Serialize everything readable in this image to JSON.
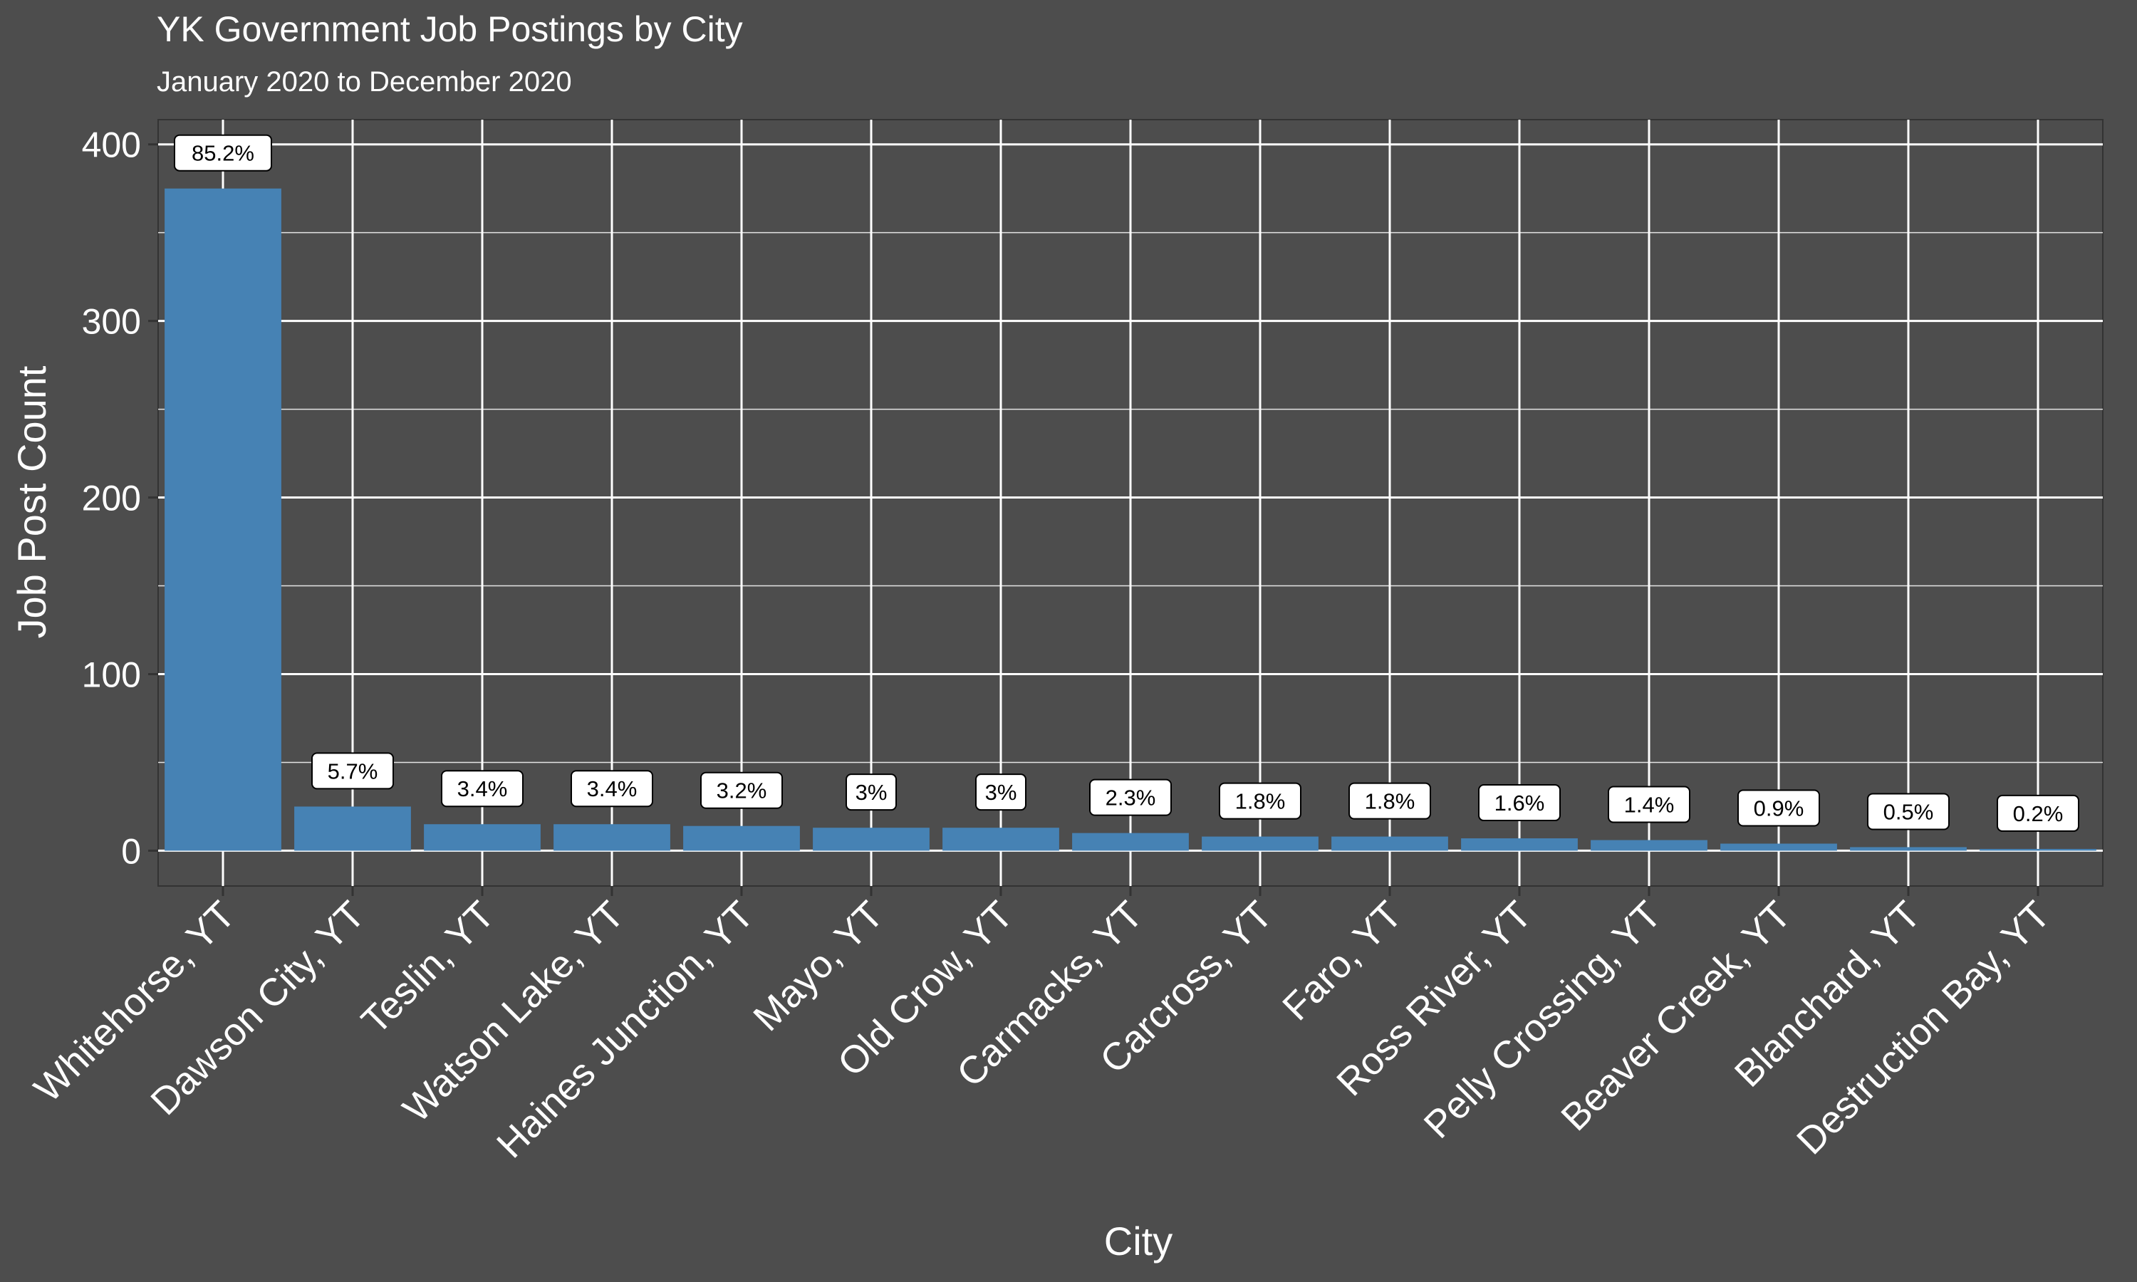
{
  "chart_data": {
    "type": "bar",
    "title": "YK Government Job Postings by City",
    "subtitle": "January 2020 to December 2020",
    "xlabel": "City",
    "ylabel": "Job Post Count",
    "categories": [
      "Whitehorse, YT",
      "Dawson City, YT",
      "Teslin, YT",
      "Watson Lake, YT",
      "Haines Junction, YT",
      "Mayo, YT",
      "Old Crow, YT",
      "Carmacks, YT",
      "Carcross, YT",
      "Faro, YT",
      "Ross River, YT",
      "Pelly Crossing, YT",
      "Beaver Creek, YT",
      "Blanchard, YT",
      "Destruction Bay, YT"
    ],
    "values": [
      375,
      25,
      15,
      15,
      14,
      13,
      13,
      10,
      8,
      8,
      7,
      6,
      4,
      2,
      1
    ],
    "data_labels": [
      "85.2%",
      "5.7%",
      "3.4%",
      "3.4%",
      "3.2%",
      "3%",
      "3%",
      "2.3%",
      "1.8%",
      "1.8%",
      "1.6%",
      "1.4%",
      "0.9%",
      "0.5%",
      "0.2%"
    ],
    "yticks": [
      0,
      100,
      200,
      300,
      400
    ],
    "ylim": [
      -20,
      414
    ],
    "grid": true,
    "colors": {
      "background": "#4d4d4d",
      "bar": "#4682b4",
      "grid": "#ffffff",
      "label_box": "#ffffff"
    }
  }
}
